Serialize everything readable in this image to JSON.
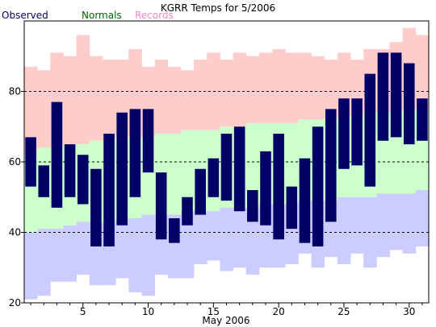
{
  "chart_data": {
    "type": "bar",
    "title": "KGRR Temps for 5/2006",
    "xlabel": "May 2006",
    "ylabel": "",
    "xlim": [
      0.5,
      31.5
    ],
    "ylim": [
      20,
      100
    ],
    "yticks": [
      20,
      40,
      60,
      80
    ],
    "xticks": [
      5,
      10,
      15,
      20,
      25,
      30
    ],
    "gridlines": [
      40,
      60,
      80
    ],
    "legend": [
      {
        "name": "Observed",
        "color": "#000066"
      },
      {
        "name": "Normals",
        "color": "#006600"
      },
      {
        "name": "Records",
        "color": "#ee88cc"
      }
    ],
    "x": [
      1,
      2,
      3,
      4,
      5,
      6,
      7,
      8,
      9,
      10,
      11,
      12,
      13,
      14,
      15,
      16,
      17,
      18,
      19,
      20,
      21,
      22,
      23,
      24,
      25,
      26,
      27,
      28,
      29,
      30,
      31
    ],
    "record_high": [
      87,
      86,
      91,
      90,
      96,
      90,
      89,
      89,
      92,
      87,
      89,
      87,
      86,
      89,
      91,
      89,
      91,
      90,
      91,
      92,
      91,
      91,
      90,
      89,
      91,
      89,
      92,
      92,
      94,
      98,
      96
    ],
    "normal_high": [
      62,
      64,
      64,
      65,
      65,
      66,
      66,
      67,
      67,
      67,
      68,
      68,
      69,
      69,
      69,
      70,
      70,
      71,
      71,
      71,
      71,
      72,
      72,
      72,
      73,
      73,
      74,
      74,
      74,
      75,
      75
    ],
    "normal_low": [
      40,
      41,
      41,
      42,
      43,
      43,
      43,
      44,
      44,
      45,
      45,
      45,
      46,
      46,
      46,
      47,
      47,
      47,
      48,
      48,
      48,
      49,
      49,
      49,
      50,
      50,
      50,
      51,
      51,
      51,
      52
    ],
    "record_low": [
      21,
      22,
      26,
      26,
      28,
      25,
      25,
      27,
      23,
      22,
      28,
      27,
      27,
      31,
      32,
      29,
      30,
      28,
      30,
      30,
      31,
      34,
      30,
      33,
      31,
      34,
      30,
      33,
      35,
      34,
      36
    ],
    "observed_high": [
      67,
      59,
      77,
      65,
      62,
      58,
      68,
      74,
      75,
      75,
      57,
      44,
      50,
      58,
      61,
      68,
      70,
      52,
      63,
      68,
      53,
      61,
      70,
      75,
      78,
      78,
      85,
      91,
      91,
      88,
      78
    ],
    "observed_low": [
      53,
      50,
      47,
      50,
      48,
      36,
      36,
      42,
      50,
      57,
      38,
      37,
      42,
      45,
      50,
      49,
      46,
      43,
      42,
      38,
      41,
      37,
      36,
      43,
      58,
      59,
      53,
      66,
      67,
      65,
      66
    ]
  }
}
